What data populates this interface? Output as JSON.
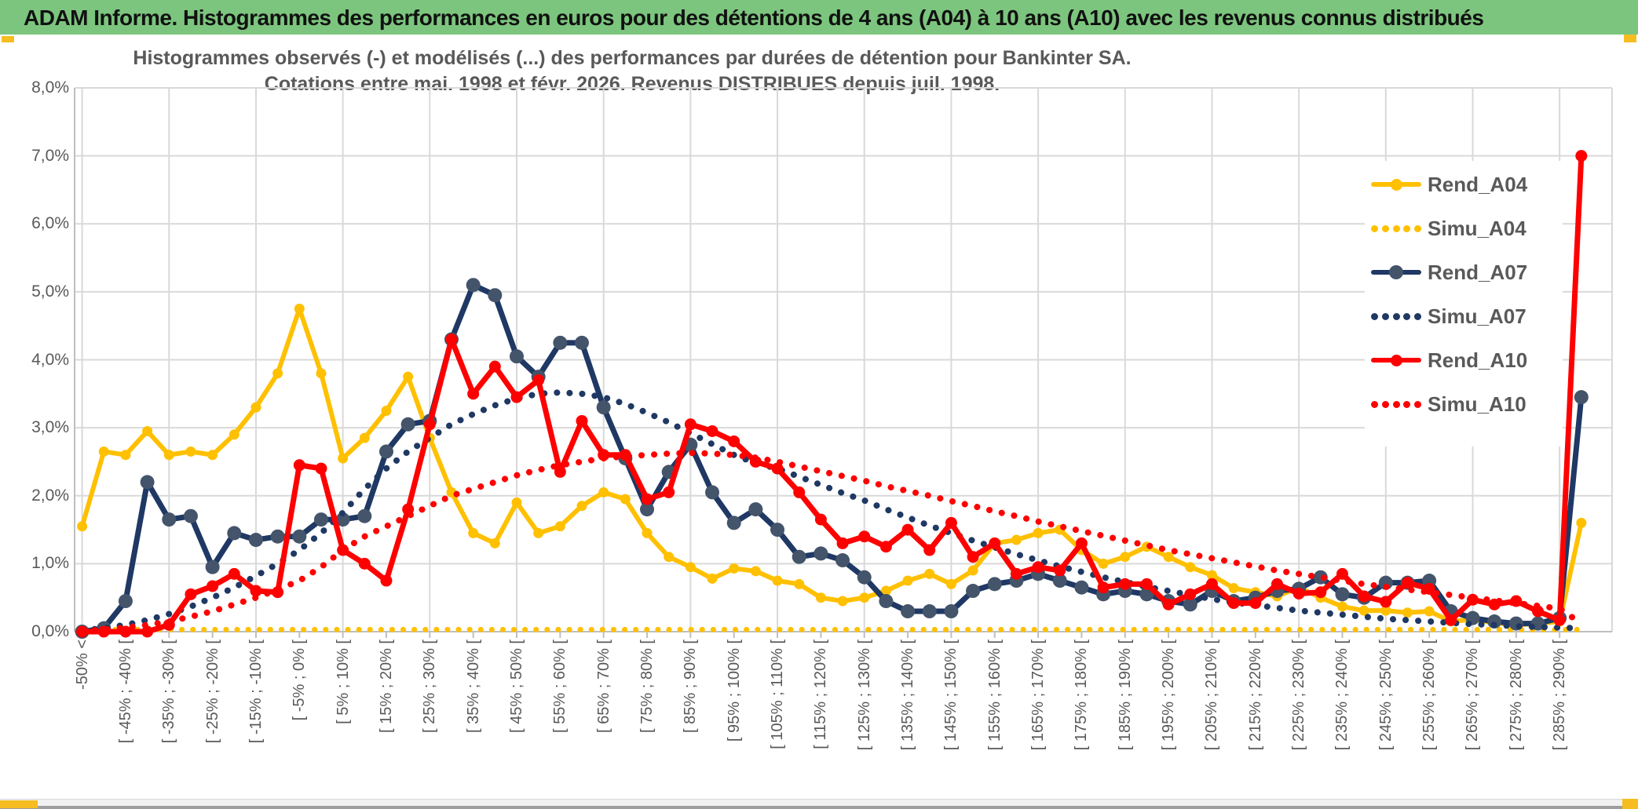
{
  "header": {
    "title": "ADAM Informe. Histogrammes des performances en euros pour des détentions de 4 ans (A04) à 10 ans (A10) avec les revenus connus distribués"
  },
  "chart": {
    "title_line1": "Histogrammes observés (-) et modélisés (...) des performances par durées de détention pour Bankinter SA.",
    "title_line2": "Cotations entre mai. 1998 et févr. 2026. Revenus DISTRIBUES depuis juil. 1998.",
    "y_tick_labels": [
      "8,0%",
      "7,0%",
      "6,0%",
      "5,0%",
      "4,0%",
      "3,0%",
      "2,0%",
      "1,0%",
      "0,0%"
    ],
    "colors": {
      "gold": "#FFC000",
      "navy": "#1F3864",
      "navy_marker": "#44546A",
      "red": "#FF0000",
      "grid": "#D9D9D9",
      "axis": "#BFBFBF",
      "text_gray": "#595959",
      "header_green": "#7CC57E",
      "accent_gold": "#F5BD1F"
    },
    "legend": [
      {
        "label": "Rend_A04",
        "color": "#FFC000",
        "style": "solid",
        "marker": "#FFC000"
      },
      {
        "label": "Simu_A04",
        "color": "#FFC000",
        "style": "dotted",
        "marker": null
      },
      {
        "label": "Rend_A07",
        "color": "#1F3864",
        "style": "solid",
        "marker": "#44546A"
      },
      {
        "label": "Simu_A07",
        "color": "#1F3864",
        "style": "dotted",
        "marker": null
      },
      {
        "label": "Rend_A10",
        "color": "#FF0000",
        "style": "solid",
        "marker": "#FF0000"
      },
      {
        "label": "Simu_A10",
        "color": "#FF0000",
        "style": "dotted",
        "marker": null
      }
    ]
  },
  "chart_data": {
    "type": "line",
    "title": "Histogrammes observés (-) et modélisés (...) des performances par durées de détention pour Bankinter SA. Cotations entre mai. 1998 et févr. 2026. Revenus DISTRIBUES depuis juil. 1998.",
    "xlabel": "",
    "ylabel": "",
    "ylim": [
      0,
      8
    ],
    "y_unit": "percent",
    "grid": true,
    "legend_position": "right-inside",
    "categories": [
      "-50% <",
      "",
      "[ -45% ; -40% [",
      "",
      "[ -35% ; -30% [",
      "",
      "[ -25% ; -20% [",
      "",
      "[ -15% ; -10% [",
      "",
      "[ -5% ; 0% [",
      "",
      "[ 5% ; 10% [",
      "",
      "[ 15% ; 20% [",
      "",
      "[ 25% ; 30% [",
      "",
      "[ 35% ; 40% [",
      "",
      "[ 45% ; 50% [",
      "",
      "[ 55% ; 60% [",
      "",
      "[ 65% ; 70% [",
      "",
      "[ 75% ; 80% [",
      "",
      "[ 85% ; 90% [",
      "",
      "[ 95% ; 100% [",
      "",
      "[ 105% ; 110% [",
      "",
      "[ 115% ; 120% [",
      "",
      "[ 125% ; 130% [",
      "",
      "[ 135% ; 140% [",
      "",
      "[ 145% ; 150% [",
      "",
      "[ 155% ; 160% [",
      "",
      "[ 165% ; 170% [",
      "",
      "[ 175% ; 180% [",
      "",
      "[ 185% ; 190% [",
      "",
      "[ 195% ; 200% [",
      "",
      "[ 205% ; 210% [",
      "",
      "[ 215% ; 220% [",
      "",
      "[ 225% ; 230% [",
      "",
      "[ 235% ; 240% [",
      "",
      "[ 245% ; 250% [",
      "",
      "[ 255% ; 260% [",
      "",
      "[ 265% ; 270% [",
      "",
      "[ 275% ; 280% [",
      "",
      "[ 285% ; 290% [",
      ""
    ],
    "series": [
      {
        "name": "Rend_A04",
        "style": "solid",
        "color": "#FFC000",
        "marker": true,
        "values": [
          1.55,
          2.65,
          2.6,
          2.95,
          2.6,
          2.65,
          2.6,
          2.9,
          3.3,
          3.8,
          4.75,
          3.8,
          2.55,
          2.85,
          3.25,
          3.75,
          2.85,
          2.05,
          1.45,
          1.3,
          1.9,
          1.45,
          1.55,
          1.85,
          2.05,
          1.95,
          1.45,
          1.1,
          0.95,
          0.78,
          0.93,
          0.89,
          0.75,
          0.7,
          0.5,
          0.45,
          0.5,
          0.6,
          0.75,
          0.85,
          0.7,
          0.9,
          1.3,
          1.35,
          1.45,
          1.5,
          1.2,
          1.0,
          1.1,
          1.25,
          1.1,
          0.95,
          0.83,
          0.64,
          0.58,
          0.52,
          0.65,
          0.5,
          0.37,
          0.31,
          0.31,
          0.28,
          0.3,
          0.15,
          0.18,
          0.13,
          0.1,
          0.12,
          0.15,
          1.6
        ]
      },
      {
        "name": "Simu_A04",
        "style": "dotted",
        "color": "#FFC000",
        "marker": false,
        "values": [
          0.03,
          0.03,
          0.03,
          0.03,
          0.03,
          0.03,
          0.03,
          0.03,
          0.03,
          0.03,
          0.03,
          0.03,
          0.03,
          0.03,
          0.03,
          0.03,
          0.03,
          0.03,
          0.03,
          0.03,
          0.03,
          0.03,
          0.03,
          0.03,
          0.03,
          0.03,
          0.03,
          0.03,
          0.03,
          0.03,
          0.03,
          0.03,
          0.03,
          0.03,
          0.03,
          0.03,
          0.03,
          0.03,
          0.03,
          0.03,
          0.03,
          0.03,
          0.03,
          0.03,
          0.03,
          0.03,
          0.03,
          0.03,
          0.03,
          0.03,
          0.03,
          0.03,
          0.03,
          0.03,
          0.03,
          0.03,
          0.03,
          0.03,
          0.03,
          0.03,
          0.03,
          0.03,
          0.03,
          0.03,
          0.03,
          0.03,
          0.03,
          0.03,
          0.03,
          0.03
        ]
      },
      {
        "name": "Rend_A07",
        "style": "solid",
        "color": "#1F3864",
        "marker": true,
        "values": [
          0.0,
          0.05,
          0.45,
          2.2,
          1.65,
          1.7,
          0.95,
          1.45,
          1.35,
          1.4,
          1.4,
          1.65,
          1.65,
          1.7,
          2.65,
          3.05,
          3.1,
          4.3,
          5.1,
          4.95,
          4.05,
          3.75,
          4.25,
          4.25,
          3.3,
          2.55,
          1.8,
          2.35,
          2.75,
          2.05,
          1.6,
          1.8,
          1.5,
          1.1,
          1.15,
          1.05,
          0.8,
          0.45,
          0.3,
          0.3,
          0.3,
          0.6,
          0.7,
          0.75,
          0.85,
          0.75,
          0.65,
          0.55,
          0.6,
          0.55,
          0.45,
          0.4,
          0.6,
          0.45,
          0.5,
          0.6,
          0.63,
          0.8,
          0.55,
          0.5,
          0.72,
          0.72,
          0.75,
          0.3,
          0.2,
          0.15,
          0.12,
          0.12,
          0.2,
          3.45
        ]
      },
      {
        "name": "Simu_A07",
        "style": "dotted",
        "color": "#1F3864",
        "marker": false,
        "values": [
          0.02,
          0.05,
          0.1,
          0.17,
          0.26,
          0.37,
          0.5,
          0.65,
          0.82,
          1.0,
          1.2,
          1.45,
          1.75,
          2.1,
          2.4,
          2.65,
          2.85,
          3.05,
          3.2,
          3.33,
          3.43,
          3.5,
          3.52,
          3.5,
          3.45,
          3.35,
          3.22,
          3.08,
          2.92,
          2.76,
          2.6,
          2.48,
          2.4,
          2.28,
          2.16,
          2.04,
          1.93,
          1.8,
          1.68,
          1.56,
          1.45,
          1.34,
          1.24,
          1.14,
          1.05,
          0.96,
          0.88,
          0.8,
          0.73,
          0.66,
          0.6,
          0.54,
          0.48,
          0.43,
          0.39,
          0.35,
          0.31,
          0.28,
          0.25,
          0.22,
          0.19,
          0.17,
          0.15,
          0.13,
          0.11,
          0.1,
          0.08,
          0.07,
          0.06,
          0.05
        ]
      },
      {
        "name": "Rend_A10",
        "style": "solid",
        "color": "#FF0000",
        "marker": true,
        "values": [
          0.0,
          0.0,
          0.0,
          0.0,
          0.1,
          0.55,
          0.67,
          0.85,
          0.6,
          0.58,
          2.45,
          2.4,
          1.2,
          1.0,
          0.75,
          1.8,
          3.05,
          4.3,
          3.5,
          3.9,
          3.45,
          3.7,
          2.35,
          3.1,
          2.6,
          2.6,
          1.95,
          2.05,
          3.05,
          2.95,
          2.8,
          2.5,
          2.4,
          2.05,
          1.65,
          1.3,
          1.4,
          1.25,
          1.5,
          1.2,
          1.6,
          1.1,
          1.3,
          0.85,
          0.95,
          0.9,
          1.3,
          0.65,
          0.7,
          0.7,
          0.4,
          0.55,
          0.7,
          0.42,
          0.42,
          0.7,
          0.56,
          0.58,
          0.85,
          0.52,
          0.44,
          0.72,
          0.63,
          0.17,
          0.47,
          0.4,
          0.45,
          0.3,
          0.17,
          7.0
        ]
      },
      {
        "name": "Simu_A10",
        "style": "dotted",
        "color": "#FF0000",
        "marker": false,
        "values": [
          0.01,
          0.03,
          0.06,
          0.1,
          0.15,
          0.22,
          0.3,
          0.4,
          0.5,
          0.62,
          0.75,
          0.95,
          1.2,
          1.4,
          1.55,
          1.7,
          1.85,
          2.0,
          2.1,
          2.2,
          2.3,
          2.38,
          2.45,
          2.5,
          2.55,
          2.58,
          2.6,
          2.62,
          2.63,
          2.62,
          2.6,
          2.56,
          2.5,
          2.43,
          2.36,
          2.29,
          2.22,
          2.14,
          2.07,
          2.0,
          1.92,
          1.85,
          1.77,
          1.7,
          1.62,
          1.55,
          1.48,
          1.41,
          1.34,
          1.27,
          1.2,
          1.14,
          1.08,
          1.02,
          0.96,
          0.9,
          0.85,
          0.8,
          0.75,
          0.7,
          0.66,
          0.62,
          0.58,
          0.54,
          0.5,
          0.46,
          0.42,
          0.38,
          0.34,
          0.12
        ]
      }
    ]
  }
}
